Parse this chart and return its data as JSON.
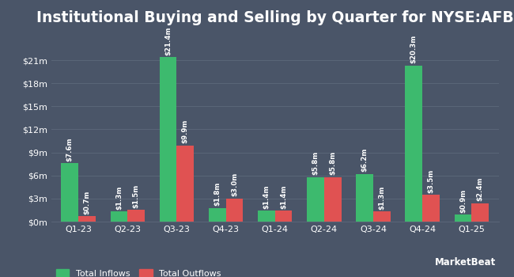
{
  "title": "Institutional Buying and Selling by Quarter for NYSE:AFB",
  "quarters": [
    "Q1-23",
    "Q2-23",
    "Q3-23",
    "Q4-23",
    "Q1-24",
    "Q2-24",
    "Q3-24",
    "Q4-24",
    "Q1-25"
  ],
  "inflows": [
    7.6,
    1.3,
    21.4,
    1.8,
    1.4,
    5.8,
    6.2,
    20.3,
    0.9
  ],
  "outflows": [
    0.7,
    1.5,
    9.9,
    3.0,
    1.4,
    5.8,
    1.3,
    3.5,
    2.4
  ],
  "inflow_labels": [
    "$7.6m",
    "$1.3m",
    "$21.4m",
    "$1.8m",
    "$1.4m",
    "$5.8m",
    "$6.2m",
    "$20.3m",
    "$0.9m"
  ],
  "outflow_labels": [
    "$0.7m",
    "$1.5m",
    "$9.9m",
    "$3.0m",
    "$1.4m",
    "$5.8m",
    "$1.3m",
    "$3.5m",
    "$2.4m"
  ],
  "inflow_color": "#3dba6e",
  "outflow_color": "#e05252",
  "background_color": "#4a5568",
  "text_color": "#ffffff",
  "grid_color": "#5a6678",
  "yticks": [
    0,
    3,
    6,
    9,
    12,
    15,
    18,
    21
  ],
  "ytick_labels": [
    "$0m",
    "$3m",
    "$6m",
    "$9m",
    "$12m",
    "$15m",
    "$18m",
    "$21m"
  ],
  "ylim": [
    0,
    24.5
  ],
  "legend_inflow": "Total Inflows",
  "legend_outflow": "Total Outflows",
  "bar_width": 0.35,
  "label_fontsize": 6.2,
  "title_fontsize": 13.5,
  "tick_fontsize": 8,
  "legend_fontsize": 8
}
